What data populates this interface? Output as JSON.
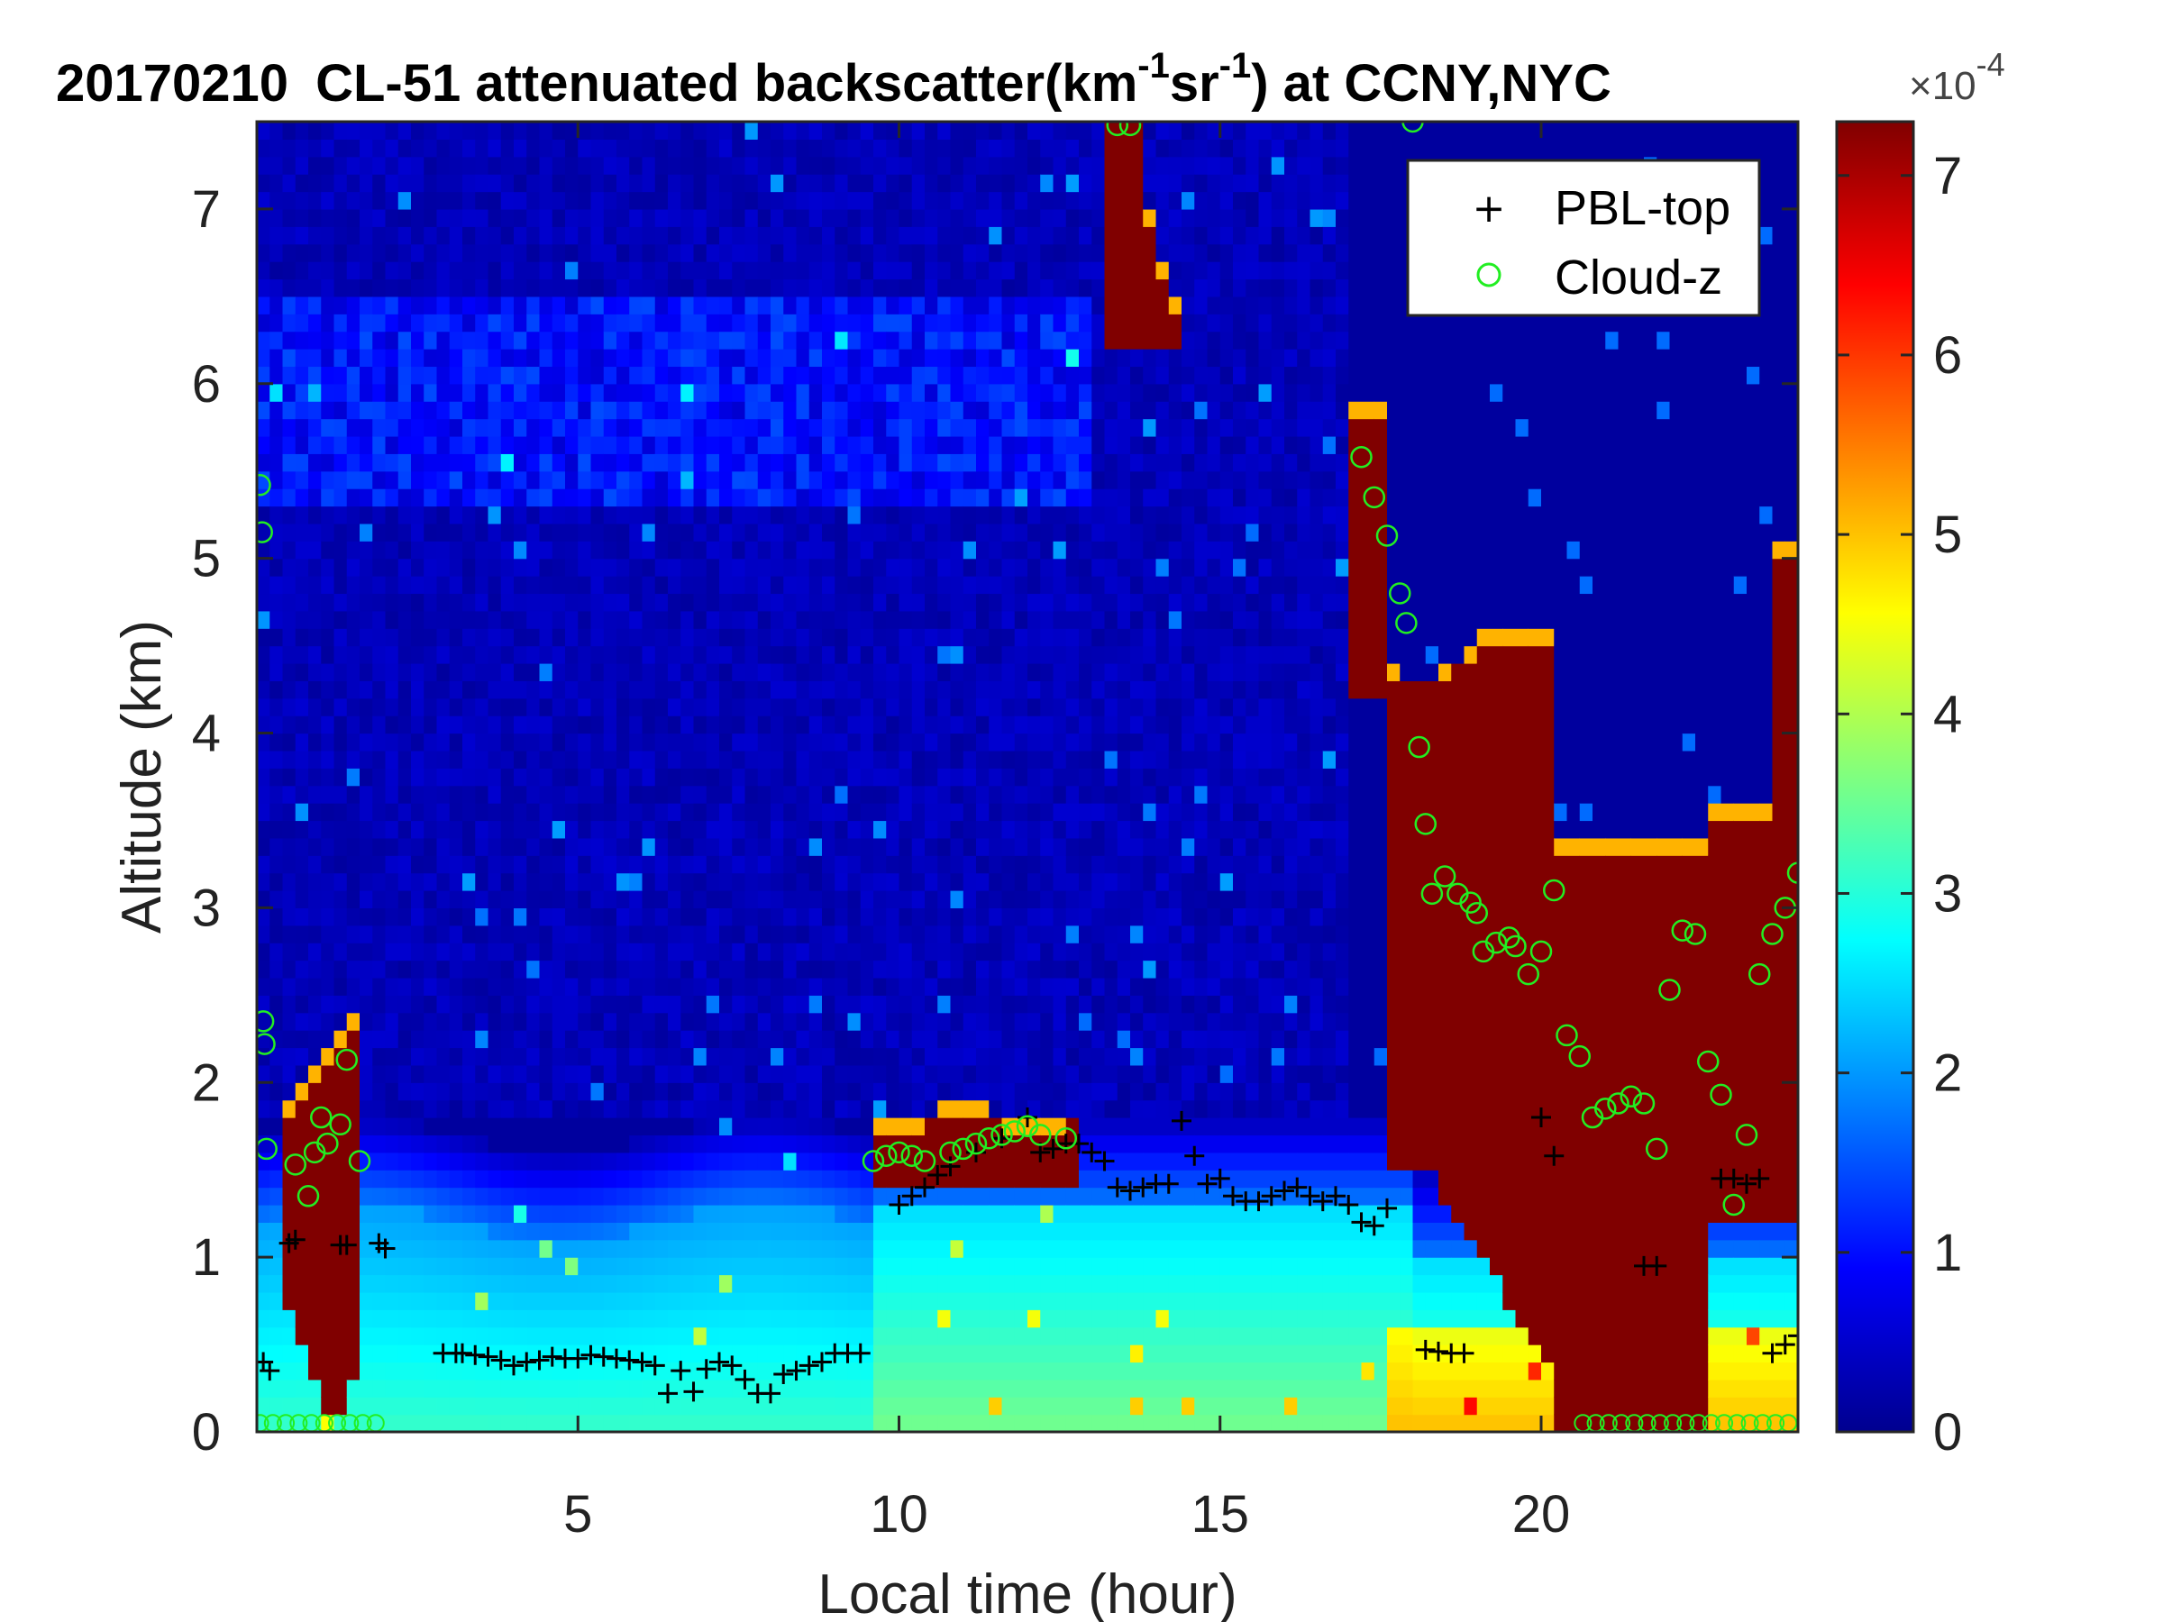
{
  "chart_data": {
    "type": "heatmap",
    "title": {
      "date": "20170210",
      "prefix": "CL-51 attenuated backscatter(km",
      "exp1": "-1",
      "middle": "sr",
      "exp2": "-1",
      "suffix": ") at CCNY,NYC"
    },
    "xlabel": "Local time (hour)",
    "ylabel": "Altitude (km)",
    "xlim": [
      0,
      24
    ],
    "ylim": [
      0,
      7.5
    ],
    "xticks": [
      5,
      10,
      15,
      20
    ],
    "yticks": [
      0,
      1,
      2,
      3,
      4,
      5,
      6,
      7
    ],
    "colorbar": {
      "range": [
        0,
        7.3
      ],
      "ticks": [
        0,
        1,
        2,
        3,
        4,
        5,
        6,
        7
      ],
      "scale_label": "×10",
      "scale_exponent": "-4",
      "colormap": "jet"
    },
    "legend": {
      "position": "top-right",
      "entries": [
        {
          "name": "PBL-top",
          "marker": "+",
          "color": "#000000"
        },
        {
          "name": "Cloud-z",
          "marker": "o",
          "color": "#22ee22"
        }
      ]
    },
    "series": [
      {
        "name": "PBL-top",
        "x": [
          0.1,
          0.2,
          0.5,
          0.6,
          1.3,
          1.4,
          1.9,
          2.0,
          2.9,
          3.1,
          3.2,
          3.4,
          3.6,
          3.8,
          4.0,
          4.2,
          4.4,
          4.6,
          4.8,
          5.0,
          5.2,
          5.4,
          5.6,
          5.8,
          6.0,
          6.2,
          6.4,
          6.6,
          6.8,
          7.0,
          7.2,
          7.4,
          7.6,
          7.8,
          8.0,
          8.2,
          8.4,
          8.6,
          8.8,
          9.0,
          9.2,
          9.4,
          10.0,
          10.2,
          10.4,
          10.6,
          10.8,
          11.2,
          11.6,
          12.0,
          12.2,
          12.4,
          12.6,
          12.8,
          13.0,
          13.2,
          13.4,
          13.6,
          13.8,
          14.0,
          14.2,
          14.4,
          14.6,
          14.8,
          15.0,
          15.2,
          15.4,
          15.6,
          15.8,
          16.0,
          16.2,
          16.4,
          16.6,
          16.8,
          17.0,
          17.2,
          17.4,
          17.6,
          18.2,
          18.4,
          18.6,
          18.8,
          20.0,
          20.2,
          21.6,
          21.8,
          22.8,
          23.0,
          23.2,
          23.4,
          23.6,
          23.8,
          24.0
        ],
        "y": [
          0.4,
          0.35,
          1.08,
          1.1,
          1.07,
          1.07,
          1.08,
          1.05,
          0.45,
          0.45,
          0.45,
          0.44,
          0.43,
          0.41,
          0.38,
          0.4,
          0.41,
          0.43,
          0.42,
          0.42,
          0.44,
          0.43,
          0.42,
          0.41,
          0.4,
          0.38,
          0.22,
          0.35,
          0.23,
          0.36,
          0.4,
          0.38,
          0.3,
          0.22,
          0.22,
          0.33,
          0.35,
          0.38,
          0.4,
          0.45,
          0.45,
          0.45,
          1.3,
          1.35,
          1.4,
          1.47,
          1.52,
          1.6,
          1.68,
          1.8,
          1.6,
          1.62,
          1.65,
          1.65,
          1.6,
          1.55,
          1.4,
          1.38,
          1.4,
          1.42,
          1.42,
          1.78,
          1.58,
          1.42,
          1.45,
          1.35,
          1.32,
          1.32,
          1.35,
          1.38,
          1.4,
          1.35,
          1.32,
          1.35,
          1.3,
          1.2,
          1.18,
          1.28,
          0.47,
          0.46,
          0.45,
          0.45,
          1.8,
          1.58,
          0.95,
          0.95,
          1.45,
          1.45,
          1.42,
          1.45,
          0.45,
          0.5,
          0.55
        ]
      },
      {
        "name": "Cloud-z",
        "x": [
          0.05,
          0.08,
          0.1,
          0.12,
          0.15,
          0.6,
          0.8,
          0.9,
          1.0,
          1.1,
          1.3,
          1.4,
          1.6,
          9.6,
          9.8,
          10.0,
          10.2,
          10.4,
          10.8,
          11.0,
          11.2,
          11.4,
          11.6,
          11.8,
          12.0,
          12.2,
          12.6,
          13.4,
          13.6,
          18.0,
          17.2,
          17.4,
          17.6,
          17.8,
          17.9,
          18.1,
          18.2,
          18.3,
          18.5,
          18.7,
          18.9,
          19.0,
          19.1,
          19.3,
          19.5,
          19.6,
          19.8,
          20.0,
          20.2,
          20.4,
          20.6,
          20.8,
          21.0,
          21.2,
          21.4,
          21.6,
          21.8,
          22.0,
          22.2,
          22.4,
          22.6,
          22.8,
          23.0,
          23.2,
          23.4,
          23.6,
          23.8,
          24.0
        ],
        "y": [
          5.42,
          5.15,
          2.35,
          2.22,
          1.62,
          1.53,
          1.35,
          1.6,
          1.8,
          1.65,
          1.76,
          2.13,
          1.55,
          1.55,
          1.58,
          1.6,
          1.58,
          1.55,
          1.6,
          1.62,
          1.65,
          1.68,
          1.7,
          1.72,
          1.75,
          1.7,
          1.68,
          7.48,
          7.48,
          7.5,
          5.58,
          5.35,
          5.13,
          4.8,
          4.63,
          3.92,
          3.48,
          3.08,
          3.18,
          3.08,
          3.03,
          2.97,
          2.75,
          2.8,
          2.83,
          2.78,
          2.62,
          2.75,
          3.1,
          2.27,
          2.15,
          1.8,
          1.85,
          1.88,
          1.92,
          1.88,
          1.62,
          2.53,
          2.87,
          2.85,
          2.12,
          1.93,
          1.3,
          1.7,
          2.62,
          2.85,
          3.0,
          3.2
        ],
        "surface_points_altitude": 0.05
      }
    ]
  }
}
